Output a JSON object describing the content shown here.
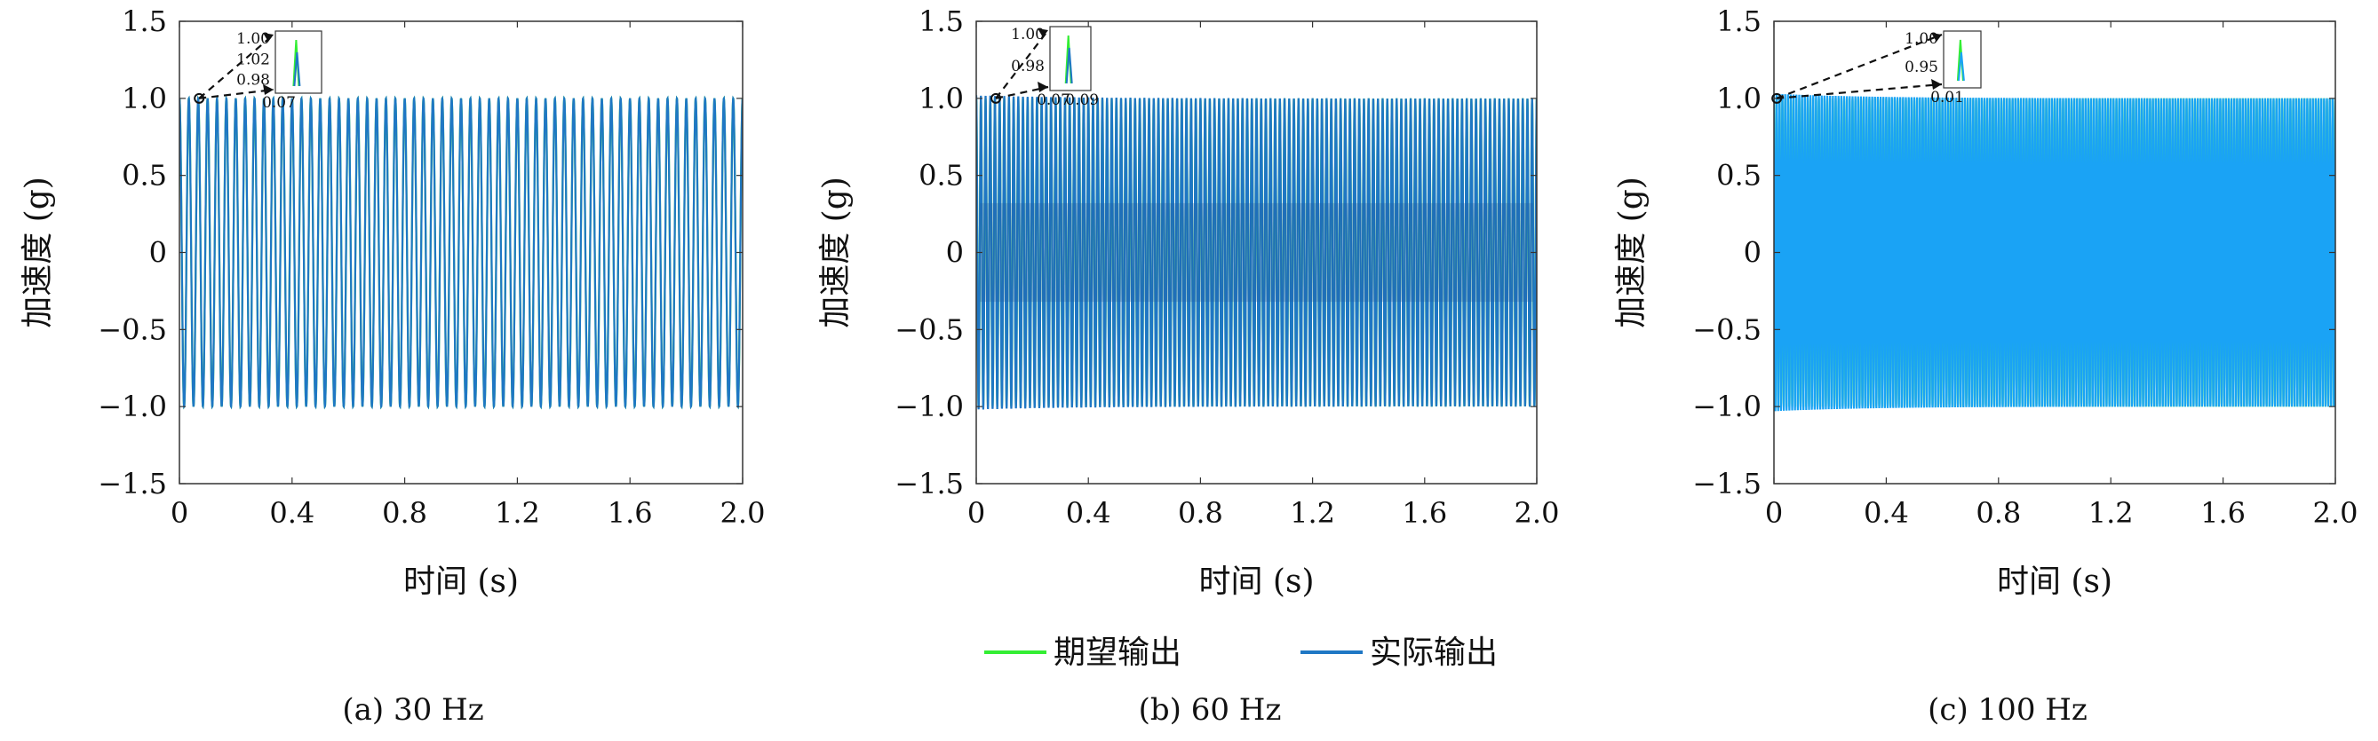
{
  "legend": {
    "items": [
      {
        "label": "期望输出",
        "color": "#33ee33"
      },
      {
        "label": "实际输出",
        "color": "#1f77c4"
      }
    ]
  },
  "chart_data": [
    {
      "type": "line",
      "caption": "(a) 30 Hz",
      "frequency_hz": 30,
      "xlabel": "时间 (s)",
      "ylabel": "加速度 (g)",
      "xlim": [
        0,
        2.0
      ],
      "ylim": [
        -1.5,
        1.5
      ],
      "xticks": [
        "0",
        "0.4",
        "0.8",
        "1.2",
        "1.6",
        "2.0"
      ],
      "yticks": [
        "1.5",
        "1.0",
        "0.5",
        "0",
        "−0.5",
        "−1.0",
        "−1.5"
      ],
      "series": [
        {
          "name": "期望输出",
          "color": "#33ee33",
          "amplitude": 1.0
        },
        {
          "name": "实际输出",
          "color": "#1f77c4",
          "amplitude": 1.0
        }
      ],
      "inset": {
        "yticks": [
          "1.00",
          "1.02",
          "0.98"
        ],
        "xticks": [
          "0.07"
        ]
      }
    },
    {
      "type": "line",
      "caption": "(b) 60 Hz",
      "frequency_hz": 60,
      "xlabel": "时间 (s)",
      "ylabel": "加速度 (g)",
      "xlim": [
        0,
        2.0
      ],
      "ylim": [
        -1.5,
        1.5
      ],
      "xticks": [
        "0",
        "0.4",
        "0.8",
        "1.2",
        "1.6",
        "2.0"
      ],
      "yticks": [
        "1.5",
        "1.0",
        "0.5",
        "0",
        "−0.5",
        "−1.0",
        "−1.5"
      ],
      "series": [
        {
          "name": "期望输出",
          "color": "#33ee33",
          "amplitude": 1.0
        },
        {
          "name": "实际输出",
          "color": "#1f77c4",
          "amplitude": 1.02
        }
      ],
      "inset": {
        "yticks": [
          "1.00",
          "0.98"
        ],
        "xticks": [
          "0.07",
          "0.09"
        ]
      }
    },
    {
      "type": "line",
      "caption": "(c) 100 Hz",
      "frequency_hz": 100,
      "xlabel": "时间 (s)",
      "ylabel": "加速度 (g)",
      "xlim": [
        0,
        2.0
      ],
      "ylim": [
        -1.5,
        1.5
      ],
      "xticks": [
        "0",
        "0.4",
        "0.8",
        "1.2",
        "1.6",
        "2.0"
      ],
      "yticks": [
        "1.5",
        "1.0",
        "0.5",
        "0",
        "−0.5",
        "−1.0",
        "−1.5"
      ],
      "series": [
        {
          "name": "期望输出",
          "color": "#33ee33",
          "amplitude": 1.0
        },
        {
          "name": "实际输出",
          "color": "#1aa3f5",
          "amplitude": 1.03
        }
      ],
      "inset": {
        "yticks": [
          "1.00",
          "0.95"
        ],
        "xticks": [
          "0.01"
        ]
      }
    }
  ]
}
